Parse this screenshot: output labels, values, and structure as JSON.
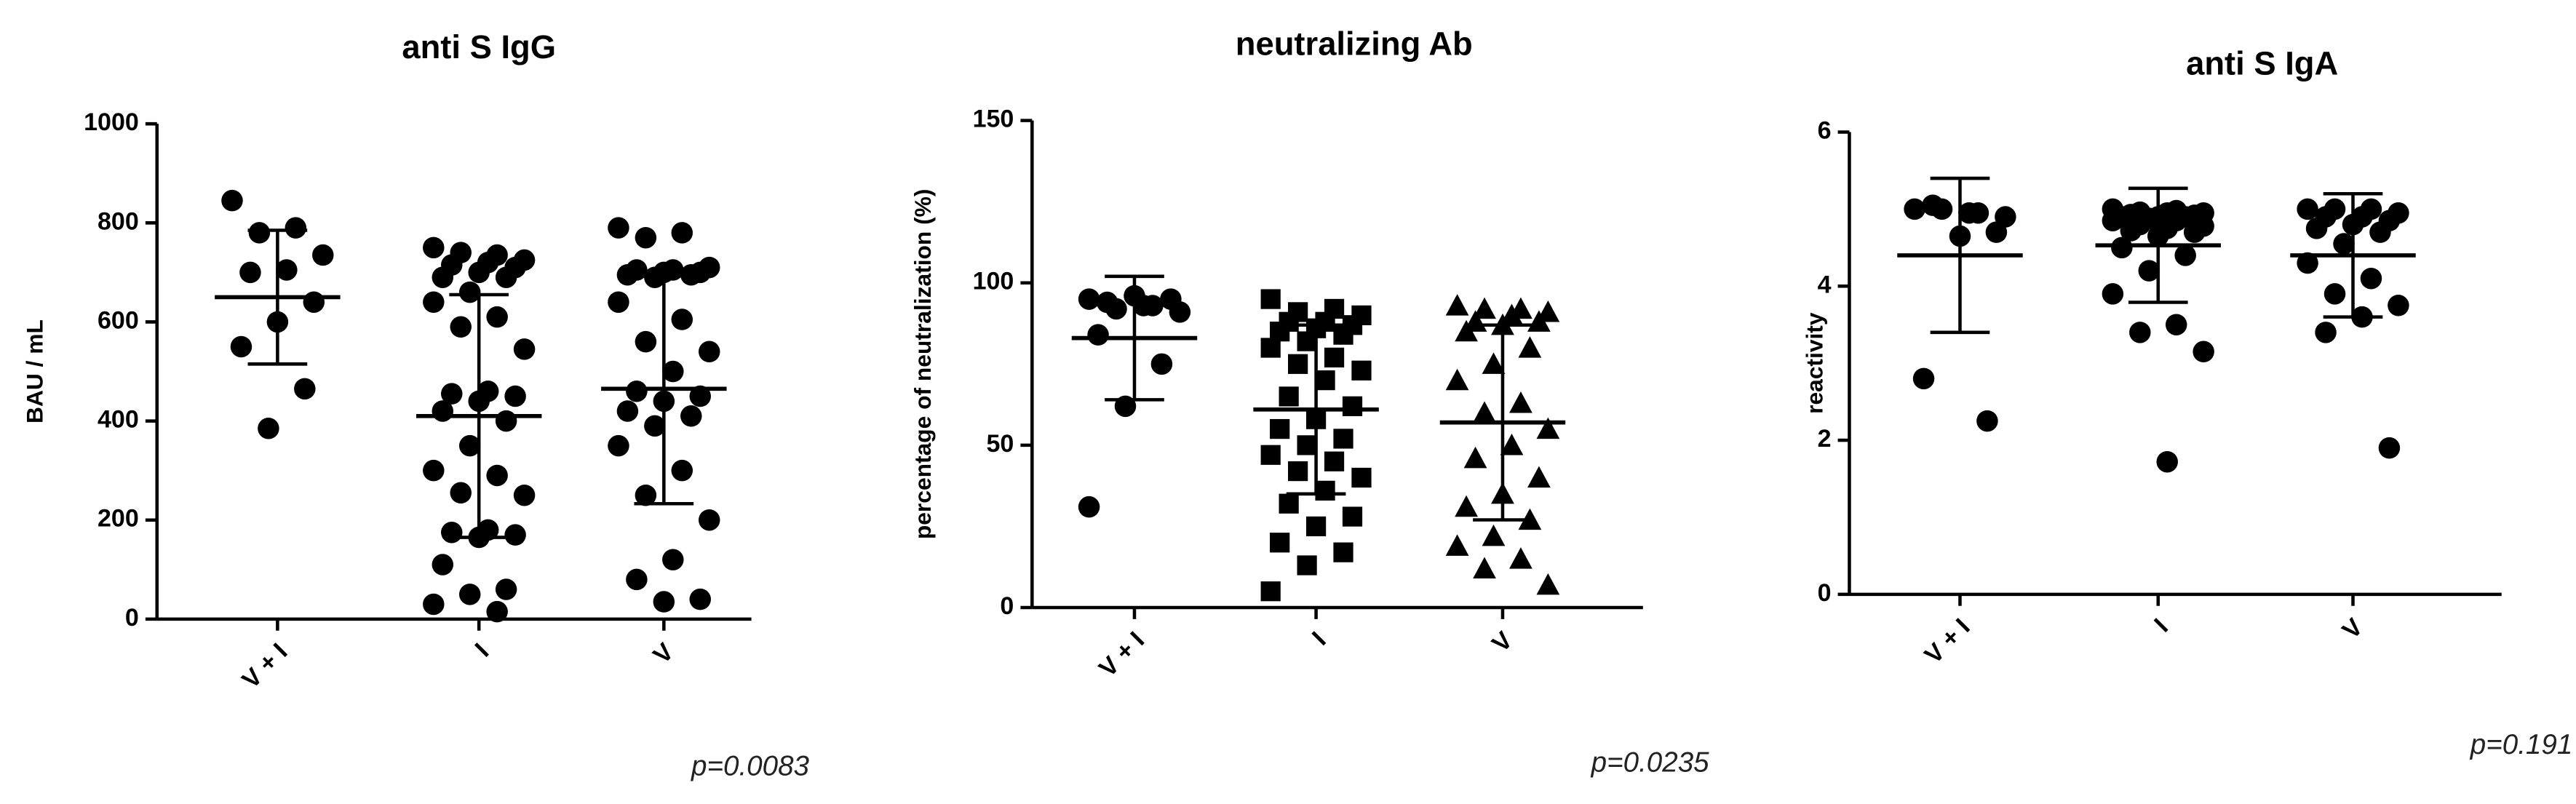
{
  "chart_data": [
    {
      "type": "dotplot",
      "title": "anti S IgG",
      "ylabel": "BAU / mL",
      "note": "p=0.0083",
      "categories": [
        "V + I",
        "I",
        "V"
      ],
      "markers": [
        "circle",
        "circle",
        "circle"
      ],
      "color": "#000000",
      "values": [
        [
          845,
          790,
          780,
          735,
          705,
          700,
          640,
          600,
          550,
          465,
          385
        ],
        [
          750,
          735,
          740,
          725,
          720,
          715,
          710,
          700,
          690,
          690,
          660,
          640,
          610,
          590,
          545,
          460,
          455,
          450,
          440,
          420,
          400,
          350,
          300,
          290,
          255,
          250,
          180,
          175,
          170,
          165,
          110,
          60,
          50,
          30,
          15
        ],
        [
          790,
          780,
          770,
          710,
          705,
          705,
          700,
          700,
          695,
          695,
          690,
          640,
          605,
          560,
          540,
          500,
          460,
          450,
          440,
          420,
          410,
          390,
          350,
          300,
          250,
          200,
          120,
          80,
          40,
          35
        ]
      ],
      "means": [
        650,
        410,
        465
      ],
      "sds": [
        135,
        245,
        232
      ],
      "ylim": [
        0,
        1000
      ],
      "yticks": [
        0,
        200,
        400,
        600,
        800,
        1000
      ]
    },
    {
      "type": "dotplot",
      "title": "neutralizing Ab",
      "ylabel": "percentage of neutralization (%)",
      "note": "p=0.0235",
      "categories": [
        "V + I",
        "I",
        "V"
      ],
      "markers": [
        "circle",
        "square",
        "triangle"
      ],
      "color": "#000000",
      "values": [
        [
          95,
          93,
          92,
          91,
          93,
          94,
          95,
          96,
          84,
          75,
          62,
          31
        ],
        [
          95,
          92,
          91,
          90,
          88,
          88,
          87,
          86,
          85,
          84,
          82,
          80,
          77,
          75,
          73,
          70,
          65,
          62,
          58,
          55,
          52,
          50,
          47,
          45,
          42,
          40,
          36,
          32,
          28,
          25,
          20,
          17,
          13,
          5
        ],
        [
          93,
          92,
          92,
          91,
          90,
          88,
          88,
          87,
          85,
          80,
          75,
          70,
          63,
          60,
          55,
          50,
          46,
          40,
          35,
          31,
          27,
          22,
          19,
          15,
          12,
          7
        ]
      ],
      "means": [
        83,
        61,
        57
      ],
      "sds": [
        19,
        26,
        30
      ],
      "ylim": [
        0,
        150
      ],
      "yticks": [
        0,
        50,
        100,
        150
      ]
    },
    {
      "type": "dotplot",
      "title": "anti S IgA",
      "ylabel": "reactivity",
      "note": "p=0.191",
      "categories": [
        "V + I",
        "I",
        "V"
      ],
      "markers": [
        "circle",
        "circle",
        "circle"
      ],
      "color": "#000000",
      "values": [
        [
          5.0,
          4.95,
          5.0,
          4.9,
          4.95,
          5.05,
          4.7,
          4.65,
          2.8,
          2.25
        ],
        [
          5.0,
          4.98,
          4.96,
          4.95,
          4.95,
          4.93,
          4.92,
          4.9,
          4.9,
          4.9,
          4.88,
          4.85,
          4.85,
          4.8,
          4.78,
          4.75,
          4.72,
          4.7,
          4.65,
          4.5,
          4.4,
          4.2,
          3.9,
          3.5,
          3.4,
          3.15,
          1.72
        ],
        [
          5.0,
          5.0,
          5.0,
          4.95,
          4.9,
          4.9,
          4.85,
          4.8,
          4.75,
          4.7,
          4.55,
          4.3,
          4.1,
          3.9,
          3.75,
          3.6,
          3.4,
          1.9
        ]
      ],
      "means": [
        4.4,
        4.53,
        4.4
      ],
      "sds": [
        1.0,
        0.74,
        0.8
      ],
      "ylim": [
        0,
        6
      ],
      "yticks": [
        0,
        2,
        4,
        6
      ]
    }
  ]
}
